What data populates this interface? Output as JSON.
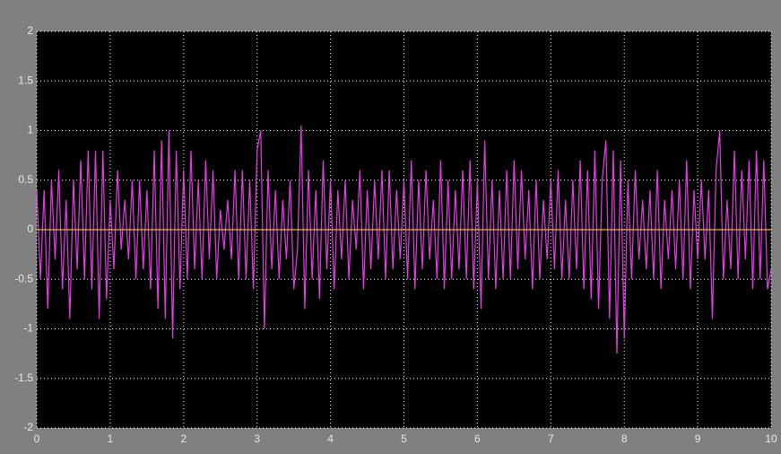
{
  "chart_data": {
    "type": "line",
    "xlim": [
      0,
      10
    ],
    "xticks": [
      0,
      1,
      2,
      3,
      4,
      5,
      6,
      7,
      8,
      9,
      10
    ],
    "ylim": [
      -2,
      2
    ],
    "yticks": [
      -2,
      -1.5,
      -1,
      -0.5,
      0,
      0.5,
      1,
      1.5,
      2
    ],
    "grid": true,
    "x": [
      0,
      0.05,
      0.1,
      0.15,
      0.2,
      0.25,
      0.3,
      0.35,
      0.4,
      0.45,
      0.5,
      0.55,
      0.6,
      0.65,
      0.7,
      0.75,
      0.8,
      0.85,
      0.9,
      0.95,
      1,
      1.05,
      1.1,
      1.15,
      1.2,
      1.25,
      1.3,
      1.35,
      1.4,
      1.45,
      1.5,
      1.55,
      1.6,
      1.65,
      1.7,
      1.75,
      1.8,
      1.85,
      1.9,
      1.95,
      2,
      2.05,
      2.1,
      2.15,
      2.2,
      2.25,
      2.3,
      2.35,
      2.4,
      2.45,
      2.5,
      2.55,
      2.6,
      2.65,
      2.7,
      2.75,
      2.8,
      2.85,
      2.9,
      2.95,
      3,
      3.05,
      3.1,
      3.15,
      3.2,
      3.25,
      3.3,
      3.35,
      3.4,
      3.45,
      3.5,
      3.55,
      3.6,
      3.65,
      3.7,
      3.75,
      3.8,
      3.85,
      3.9,
      3.95,
      4,
      4.05,
      4.1,
      4.15,
      4.2,
      4.25,
      4.3,
      4.35,
      4.4,
      4.45,
      4.5,
      4.55,
      4.6,
      4.65,
      4.7,
      4.75,
      4.8,
      4.85,
      4.9,
      4.95,
      5,
      5.05,
      5.1,
      5.15,
      5.2,
      5.25,
      5.3,
      5.35,
      5.4,
      5.45,
      5.5,
      5.55,
      5.6,
      5.65,
      5.7,
      5.75,
      5.8,
      5.85,
      5.9,
      5.95,
      6,
      6.05,
      6.1,
      6.15,
      6.2,
      6.25,
      6.3,
      6.35,
      6.4,
      6.45,
      6.5,
      6.55,
      6.6,
      6.65,
      6.7,
      6.75,
      6.8,
      6.85,
      6.9,
      6.95,
      7,
      7.05,
      7.1,
      7.15,
      7.2,
      7.25,
      7.3,
      7.35,
      7.4,
      7.45,
      7.5,
      7.55,
      7.6,
      7.65,
      7.7,
      7.75,
      7.8,
      7.85,
      7.9,
      7.95,
      8,
      8.05,
      8.1,
      8.15,
      8.2,
      8.25,
      8.3,
      8.35,
      8.4,
      8.45,
      8.5,
      8.55,
      8.6,
      8.65,
      8.7,
      8.75,
      8.8,
      8.85,
      8.9,
      8.95,
      9,
      9.05,
      9.1,
      9.15,
      9.2,
      9.25,
      9.3,
      9.35,
      9.4,
      9.45,
      9.5,
      9.55,
      9.6,
      9.65,
      9.7,
      9.75,
      9.8,
      9.85,
      9.9,
      9.95,
      10
    ],
    "series": [
      {
        "color": "#e83ce8",
        "values": [
          0.4,
          -0.5,
          0.4,
          -0.8,
          0.5,
          -0.3,
          0.6,
          -0.6,
          0.3,
          -0.9,
          0.5,
          -0.4,
          0.7,
          -0.5,
          0.8,
          -0.6,
          0.8,
          -0.9,
          0.8,
          -0.7,
          0.3,
          -0.4,
          0.6,
          -0.2,
          0.3,
          -0.3,
          0.5,
          -0.5,
          0.5,
          -0.4,
          0.4,
          -0.6,
          0.8,
          -0.8,
          0.9,
          -0.9,
          1.0,
          -1.1,
          0.8,
          -0.6,
          0.6,
          -0.5,
          0.8,
          -0.4,
          0.5,
          -0.5,
          0.7,
          -0.3,
          0.6,
          -0.5,
          0.2,
          -0.2,
          0.3,
          -0.3,
          0.6,
          -0.5,
          0.6,
          -0.5,
          0.5,
          -0.6,
          0.8,
          1.0,
          -1.0,
          0.6,
          -0.4,
          0.4,
          -0.5,
          0.3,
          -0.3,
          0.5,
          -0.6,
          -0.2,
          1.05,
          -0.8,
          0.6,
          -0.5,
          0.4,
          -0.7,
          0.7,
          -0.4,
          0.5,
          -0.6,
          0.4,
          -0.3,
          0.5,
          -0.5,
          0.3,
          -0.2,
          0.6,
          -0.6,
          0.4,
          -0.4,
          0.5,
          -0.3,
          0.6,
          -0.5,
          0.6,
          -0.4,
          0.4,
          -0.3,
          0.5,
          -0.5,
          0.7,
          -0.6,
          0.5,
          -0.4,
          0.6,
          -0.3,
          0.3,
          -0.5,
          0.7,
          -0.6,
          0.5,
          -0.5,
          0.4,
          -0.4,
          0.6,
          -0.5,
          0.7,
          -0.6,
          0.5,
          -0.8,
          0.9,
          -0.5,
          0.5,
          -0.6,
          0.4,
          -0.5,
          0.6,
          -0.5,
          0.7,
          -0.4,
          0.6,
          -0.3,
          0.4,
          -0.6,
          0.5,
          -0.5,
          0.3,
          -0.3,
          0.5,
          -0.4,
          0.6,
          -0.5,
          0.3,
          -0.5,
          0.5,
          -0.4,
          0.7,
          -0.6,
          0.6,
          -0.7,
          0.8,
          -0.8,
          0.5,
          0.9,
          -0.9,
          0.8,
          -1.25,
          0.7,
          -1.1,
          0.5,
          -0.5,
          0.6,
          -0.3,
          0.3,
          -0.4,
          0.4,
          -0.5,
          0.6,
          -0.6,
          0.3,
          -0.3,
          0.4,
          -0.4,
          0.5,
          -0.5,
          0.7,
          -0.6,
          0.4,
          -0.3,
          0.5,
          -0.3,
          0.4,
          -0.9,
          0.6,
          1.0,
          -0.5,
          0.3,
          -0.4,
          0.8,
          -0.5,
          0.6,
          -0.3,
          0.7,
          -0.6,
          0.8,
          -0.5,
          0.7,
          -0.6,
          -0.4
        ]
      },
      {
        "color": "#f0a868",
        "x": [
          0,
          10
        ],
        "values": [
          0,
          0
        ]
      }
    ]
  }
}
